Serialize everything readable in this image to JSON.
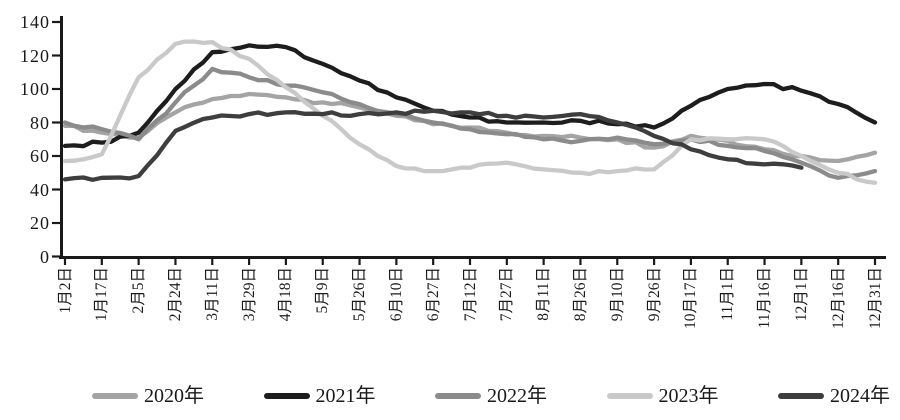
{
  "page": {
    "background": "#ffffff",
    "text_color": "#1a1a1a"
  },
  "chart_data": {
    "type": "line",
    "title": "",
    "xlabel": "",
    "ylabel": "",
    "grid": false,
    "legend_position": "bottom",
    "axis_color": "#1a1a1a",
    "ylim": [
      0,
      140
    ],
    "y_ticks": [
      0,
      20,
      40,
      60,
      80,
      100,
      120,
      140
    ],
    "categories": [
      "1月2日",
      "1月17日",
      "2月5日",
      "2月24日",
      "3月11日",
      "3月29日",
      "4月18日",
      "5月9日",
      "5月26日",
      "6月10日",
      "6月27日",
      "7月12日",
      "7月27日",
      "8月11日",
      "8月26日",
      "9月10日",
      "9月26日",
      "10月17日",
      "11月1日",
      "11月16日",
      "12月1日",
      "12月16日",
      "12月31日"
    ],
    "series": [
      {
        "name": "2020年",
        "color": "#a4a4a4",
        "values": [
          78,
          74,
          71,
          86,
          94,
          97,
          95,
          92,
          89,
          84,
          79,
          77,
          74,
          72,
          71,
          70,
          65,
          72,
          69,
          64,
          60,
          57,
          62
        ]
      },
      {
        "name": "2021年",
        "color": "#1d1d1d",
        "values": [
          66,
          68,
          74,
          100,
          122,
          126,
          125,
          115,
          105,
          95,
          87,
          83,
          80,
          80,
          81,
          79,
          77,
          90,
          100,
          103,
          99,
          91,
          80
        ]
      },
      {
        "name": "2022年",
        "color": "#8b8b8b",
        "values": [
          80,
          76,
          70,
          92,
          112,
          107,
          102,
          98,
          91,
          85,
          80,
          76,
          73,
          70,
          69,
          71,
          67,
          70,
          66,
          63,
          56,
          47,
          51
        ]
      },
      {
        "name": "2023年",
        "color": "#c9c9c9",
        "values": [
          57,
          61,
          107,
          127,
          128,
          118,
          101,
          84,
          67,
          54,
          51,
          53,
          56,
          52,
          50,
          51,
          52,
          70,
          70,
          70,
          60,
          50,
          44
        ]
      },
      {
        "name": "2024年",
        "color": "#3e3e3e",
        "values": [
          46,
          47,
          48,
          75,
          83,
          85,
          86,
          85,
          85,
          86,
          87,
          86,
          84,
          83,
          85,
          80,
          72,
          64,
          58,
          55,
          53,
          null,
          null
        ]
      }
    ]
  }
}
